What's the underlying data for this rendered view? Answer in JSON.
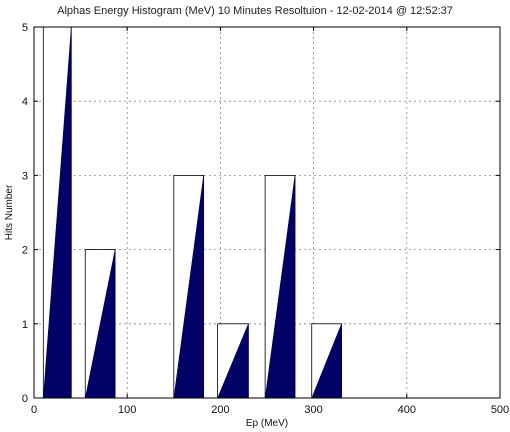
{
  "chart_data": {
    "type": "bar",
    "title": "Alphas Energy Histogram (MeV) 10 Minutes Resoltuion - 12-02-2014 @ 12:52:37",
    "xlabel": "Ep (MeV)",
    "ylabel": "Hits Number",
    "xlim": [
      0,
      500
    ],
    "ylim": [
      0,
      5
    ],
    "xticks": [
      0,
      100,
      200,
      300,
      400,
      500
    ],
    "yticks": [
      0,
      1,
      2,
      3,
      4,
      5
    ],
    "grid": true,
    "bins": [
      {
        "x0": 10,
        "x1": 40,
        "value": 5
      },
      {
        "x0": 55,
        "x1": 87,
        "value": 2
      },
      {
        "x0": 150,
        "x1": 182,
        "value": 3
      },
      {
        "x0": 197,
        "x1": 230,
        "value": 1
      },
      {
        "x0": 248,
        "x1": 280,
        "value": 3
      },
      {
        "x0": 298,
        "x1": 330,
        "value": 1
      }
    ],
    "colors": {
      "fill": "#000066",
      "outline": "#000000"
    }
  }
}
